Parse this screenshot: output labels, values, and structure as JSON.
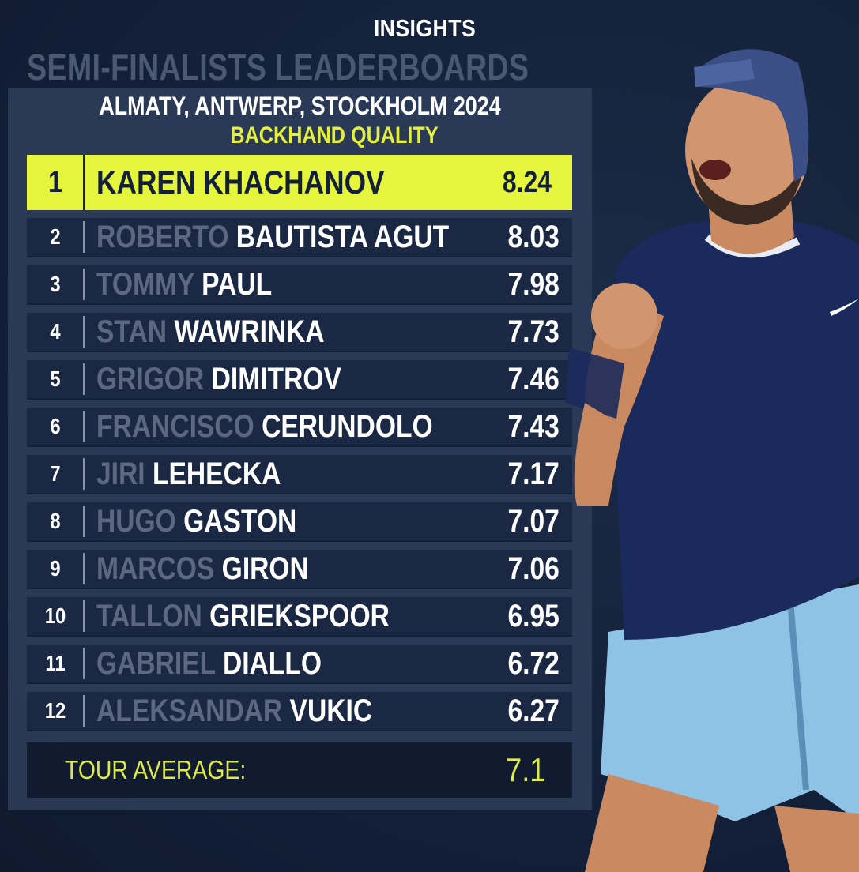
{
  "header": {
    "insights": "INSIGHTS",
    "title": "SEMI-FINALISTS LEADERBOARDS"
  },
  "board": {
    "subtitle": "ALMATY, ANTWERP, STOCKHOLM 2024",
    "metric": "BACKHAND QUALITY",
    "leader": {
      "rank": "1",
      "name": "KAREN KHACHANOV",
      "value": "8.24"
    },
    "rows": [
      {
        "rank": "2",
        "first": "ROBERTO",
        "last": "BAUTISTA AGUT",
        "value": "8.03"
      },
      {
        "rank": "3",
        "first": "TOMMY",
        "last": "PAUL",
        "value": "7.98"
      },
      {
        "rank": "4",
        "first": "STAN",
        "last": "WAWRINKA",
        "value": "7.73"
      },
      {
        "rank": "5",
        "first": "GRIGOR",
        "last": "DIMITROV",
        "value": "7.46"
      },
      {
        "rank": "6",
        "first": "FRANCISCO",
        "last": "CERUNDOLO",
        "value": "7.43"
      },
      {
        "rank": "7",
        "first": "JIRI",
        "last": "LEHECKA",
        "value": "7.17"
      },
      {
        "rank": "8",
        "first": "HUGO",
        "last": "GASTON",
        "value": "7.07"
      },
      {
        "rank": "9",
        "first": "MARCOS",
        "last": "GIRON",
        "value": "7.06"
      },
      {
        "rank": "10",
        "first": "TALLON",
        "last": "GRIEKSPOOR",
        "value": "6.95"
      },
      {
        "rank": "11",
        "first": "GABRIEL",
        "last": "DIALLO",
        "value": "6.72"
      },
      {
        "rank": "12",
        "first": "ALEKSANDAR",
        "last": "VUKIC",
        "value": "6.27"
      }
    ],
    "average": {
      "label": "TOUR AVERAGE:",
      "value": "7.1"
    }
  },
  "colors": {
    "accent": "#e5f53b",
    "background": "#14213a",
    "row": "#1b2843",
    "first_name": "#5c6880"
  }
}
